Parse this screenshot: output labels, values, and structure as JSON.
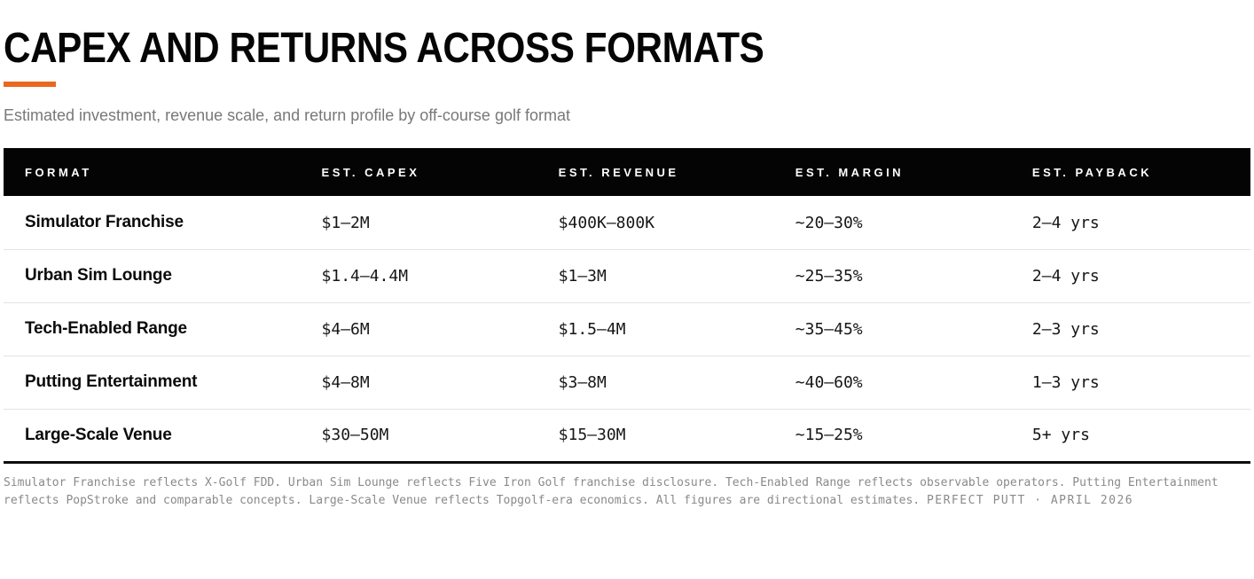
{
  "page": {
    "title": "CAPEX AND RETURNS ACROSS FORMATS",
    "subtitle": "Estimated investment, revenue scale, and return profile by off-course golf format",
    "accent_color": "#EA671F"
  },
  "chart_data": {
    "type": "table",
    "title": "CAPEX AND RETURNS ACROSS FORMATS",
    "subtitle": "Estimated investment, revenue scale, and return profile by off-course golf format",
    "columns": [
      "FORMAT",
      "EST. CAPEX",
      "EST. REVENUE",
      "EST. MARGIN",
      "EST. PAYBACK"
    ],
    "rows": [
      [
        "Simulator Franchise",
        "$1—2M",
        "$400K—800K",
        "~20—30%",
        "2—4 yrs"
      ],
      [
        "Urban Sim Lounge",
        "$1.4—4.4M",
        "$1—3M",
        "~25—35%",
        "2—4 yrs"
      ],
      [
        "Tech-Enabled Range",
        "$4—6M",
        "$1.5—4M",
        "~35—45%",
        "2—3 yrs"
      ],
      [
        "Putting Entertainment",
        "$4—8M",
        "$3—8M",
        "~40—60%",
        "1—3 yrs"
      ],
      [
        "Large-Scale Venue",
        "$30—50M",
        "$15—30M",
        "~15—25%",
        "5+ yrs"
      ]
    ]
  },
  "table": {
    "columns": {
      "format": "FORMAT",
      "capex": "EST. CAPEX",
      "revenue": "EST. REVENUE",
      "margin": "EST. MARGIN",
      "payback": "EST. PAYBACK"
    },
    "rows": [
      {
        "format": "Simulator Franchise",
        "capex": "$1—2M",
        "revenue": "$400K—800K",
        "margin": "~20—30%",
        "payback": "2—4 yrs"
      },
      {
        "format": "Urban Sim Lounge",
        "capex": "$1.4—4.4M",
        "revenue": "$1—3M",
        "margin": "~25—35%",
        "payback": "2—4 yrs"
      },
      {
        "format": "Tech-Enabled Range",
        "capex": "$4—6M",
        "revenue": "$1.5—4M",
        "margin": "~35—45%",
        "payback": "2—3 yrs"
      },
      {
        "format": "Putting Entertainment",
        "capex": "$4—8M",
        "revenue": "$3—8M",
        "margin": "~40—60%",
        "payback": "1—3 yrs"
      },
      {
        "format": "Large-Scale Venue",
        "capex": "$30—50M",
        "revenue": "$15—30M",
        "margin": "~15—25%",
        "payback": "5+ yrs"
      }
    ]
  },
  "footer": {
    "note": "Simulator Franchise reflects X-Golf FDD. Urban Sim Lounge reflects Five Iron Golf franchise disclosure. Tech-Enabled Range reflects observable operators. Putting Entertainment reflects PopStroke and comparable concepts. Large-Scale Venue reflects Topgolf-era economics. All figures are directional estimates. ",
    "attribution": "PERFECT PUTT · APRIL 2026"
  }
}
